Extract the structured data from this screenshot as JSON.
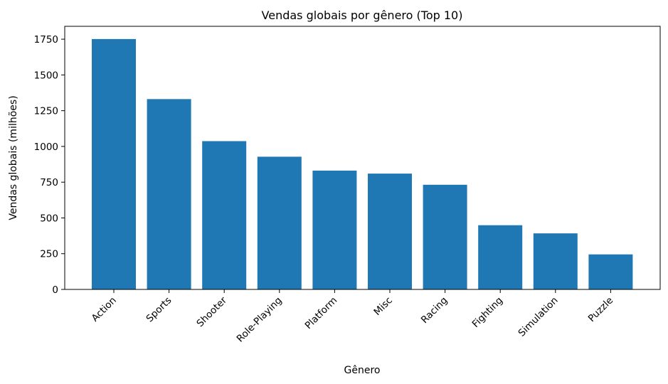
{
  "chart_data": {
    "type": "bar",
    "title": "Vendas globais por gênero (Top 10)",
    "xlabel": "Gênero",
    "ylabel": "Vendas globais (milhões)",
    "categories": [
      "Action",
      "Sports",
      "Shooter",
      "Role-Playing",
      "Platform",
      "Misc",
      "Racing",
      "Fighting",
      "Simulation",
      "Puzzle"
    ],
    "values": [
      1751,
      1331,
      1037,
      928,
      831,
      810,
      732,
      449,
      392,
      245
    ],
    "ylim": [
      0,
      1840
    ],
    "yticks": [
      0,
      250,
      500,
      750,
      1000,
      1250,
      1500,
      1750
    ],
    "bar_color": "#1f77b4",
    "grid": false,
    "legend": "none"
  }
}
